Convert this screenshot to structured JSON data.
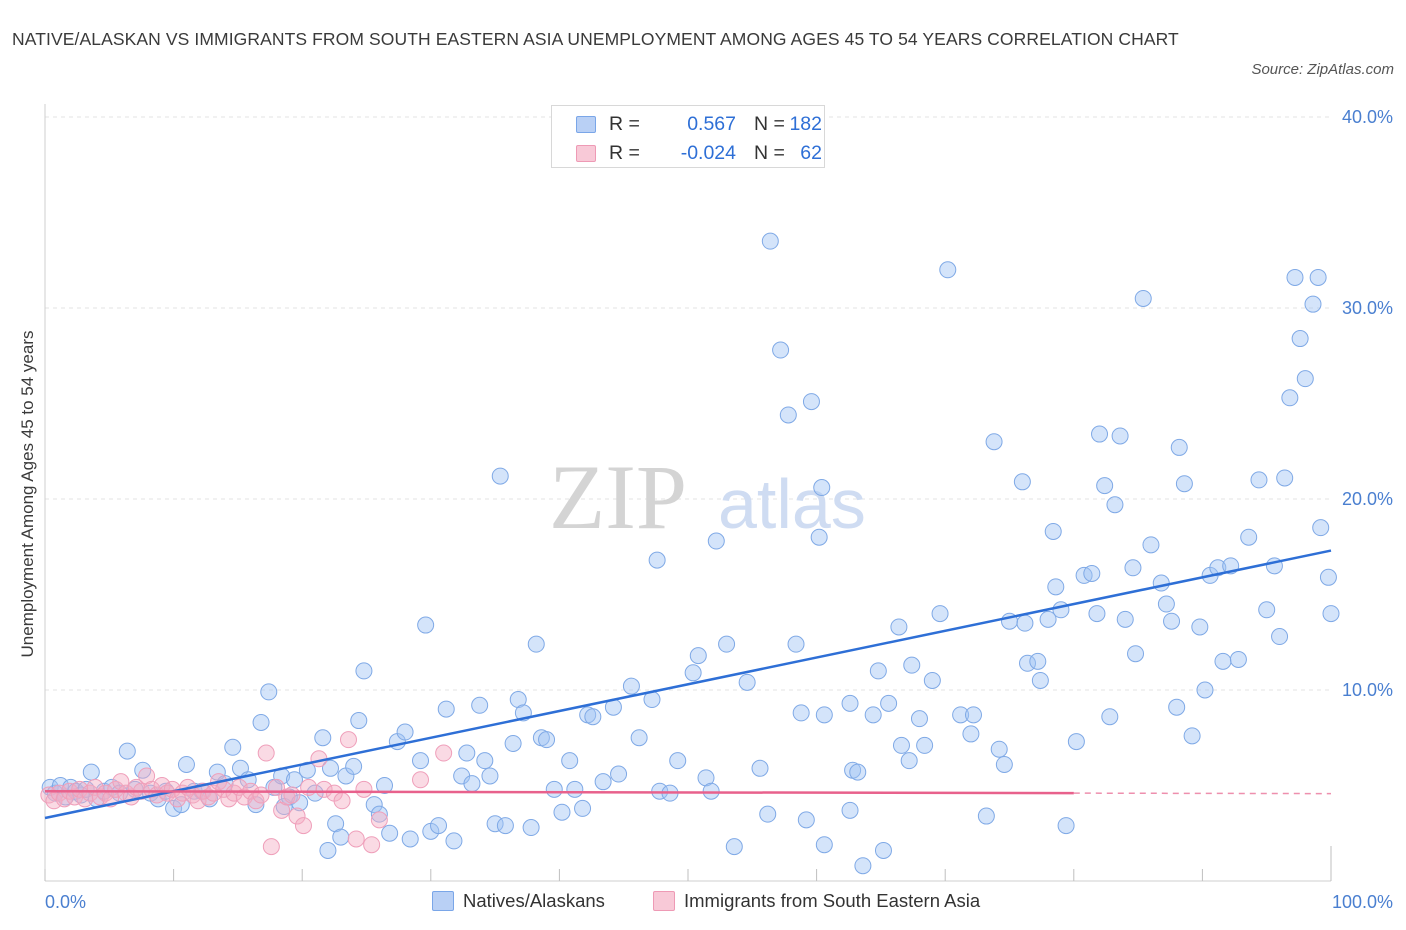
{
  "title": "NATIVE/ALASKAN VS IMMIGRANTS FROM SOUTH EASTERN ASIA UNEMPLOYMENT AMONG AGES 45 TO 54 YEARS CORRELATION CHART",
  "source": "Source: ZipAtlas.com",
  "watermark": {
    "zip": "ZIP",
    "atlas": "atlas"
  },
  "legend": {
    "rows": [
      {
        "r_label": "R =",
        "r_value": "0.567",
        "n_label": "N =",
        "n_value": "182"
      },
      {
        "r_label": "R =",
        "r_value": "-0.024",
        "n_label": "N =",
        "n_value": "62"
      }
    ]
  },
  "chart_data": {
    "type": "scatter",
    "title": "NATIVE/ALASKAN VS IMMIGRANTS FROM SOUTH EASTERN ASIA UNEMPLOYMENT AMONG AGES 45 TO 54 YEARS CORRELATION CHART",
    "xlabel": "",
    "ylabel": "Unemployment Among Ages 45 to 54 years",
    "xlim": [
      0,
      100
    ],
    "ylim": [
      0,
      40
    ],
    "x_tick_labels": [
      "0.0%",
      "100.0%"
    ],
    "y_ticks": [
      10,
      20,
      30,
      40
    ],
    "y_tick_labels": [
      "10.0%",
      "20.0%",
      "30.0%",
      "40.0%"
    ],
    "grid": true,
    "series": [
      {
        "name": "Natives/Alaskans",
        "color": "#8ab4ee",
        "line_color": "#2e6fd6",
        "R": 0.567,
        "N": 182,
        "trend": {
          "x0": 0,
          "y0": 3.3,
          "x1": 100,
          "y1": 17.3
        },
        "points": [
          [
            0.4,
            4.9
          ],
          [
            0.8,
            4.6
          ],
          [
            1.2,
            5.0
          ],
          [
            1.6,
            4.4
          ],
          [
            2.0,
            4.9
          ],
          [
            2.4,
            4.7
          ],
          [
            2.8,
            4.5
          ],
          [
            3.2,
            4.8
          ],
          [
            3.6,
            5.7
          ],
          [
            4.0,
            4.3
          ],
          [
            4.6,
            4.7
          ],
          [
            5.2,
            4.9
          ],
          [
            5.8,
            4.6
          ],
          [
            6.4,
            6.8
          ],
          [
            7.0,
            4.8
          ],
          [
            7.6,
            5.8
          ],
          [
            8.2,
            4.6
          ],
          [
            8.8,
            4.3
          ],
          [
            9.4,
            4.7
          ],
          [
            10.0,
            3.8
          ],
          [
            10.6,
            4.0
          ],
          [
            11.0,
            6.1
          ],
          [
            11.6,
            4.7
          ],
          [
            12.2,
            4.7
          ],
          [
            12.8,
            4.3
          ],
          [
            13.4,
            5.7
          ],
          [
            14.0,
            5.1
          ],
          [
            14.6,
            7.0
          ],
          [
            15.2,
            5.9
          ],
          [
            15.8,
            5.3
          ],
          [
            16.4,
            4.0
          ],
          [
            16.8,
            8.3
          ],
          [
            17.4,
            9.9
          ],
          [
            17.8,
            4.9
          ],
          [
            18.4,
            5.5
          ],
          [
            18.6,
            3.9
          ],
          [
            19.0,
            4.4
          ],
          [
            19.4,
            5.3
          ],
          [
            19.8,
            4.1
          ],
          [
            20.4,
            5.8
          ],
          [
            21.0,
            4.6
          ],
          [
            21.6,
            7.5
          ],
          [
            22.0,
            1.6
          ],
          [
            22.2,
            5.9
          ],
          [
            22.6,
            3.0
          ],
          [
            23.0,
            2.3
          ],
          [
            23.4,
            5.5
          ],
          [
            24.0,
            6.0
          ],
          [
            24.4,
            8.4
          ],
          [
            24.8,
            11.0
          ],
          [
            25.6,
            4.0
          ],
          [
            26.0,
            3.5
          ],
          [
            26.4,
            5.0
          ],
          [
            26.8,
            2.5
          ],
          [
            27.4,
            7.3
          ],
          [
            28.0,
            7.8
          ],
          [
            28.4,
            2.2
          ],
          [
            29.2,
            6.3
          ],
          [
            29.6,
            13.4
          ],
          [
            30.0,
            2.6
          ],
          [
            30.6,
            2.9
          ],
          [
            31.2,
            9.0
          ],
          [
            31.8,
            2.1
          ],
          [
            32.4,
            5.5
          ],
          [
            32.8,
            6.7
          ],
          [
            33.2,
            5.1
          ],
          [
            33.8,
            9.2
          ],
          [
            34.2,
            6.3
          ],
          [
            34.6,
            5.5
          ],
          [
            35.0,
            3.0
          ],
          [
            35.4,
            21.2
          ],
          [
            35.8,
            2.9
          ],
          [
            36.4,
            7.2
          ],
          [
            36.8,
            9.5
          ],
          [
            37.2,
            8.8
          ],
          [
            37.8,
            2.8
          ],
          [
            38.2,
            12.4
          ],
          [
            38.6,
            7.5
          ],
          [
            39.0,
            7.4
          ],
          [
            39.6,
            4.8
          ],
          [
            40.2,
            3.6
          ],
          [
            40.8,
            6.3
          ],
          [
            41.2,
            4.8
          ],
          [
            41.8,
            3.8
          ],
          [
            42.2,
            8.7
          ],
          [
            42.6,
            8.6
          ],
          [
            43.4,
            5.2
          ],
          [
            44.2,
            9.1
          ],
          [
            44.6,
            5.6
          ],
          [
            45.6,
            10.2
          ],
          [
            46.2,
            7.5
          ],
          [
            47.2,
            9.5
          ],
          [
            47.6,
            16.8
          ],
          [
            47.8,
            4.7
          ],
          [
            48.6,
            4.6
          ],
          [
            49.2,
            6.3
          ],
          [
            50.4,
            10.9
          ],
          [
            50.8,
            11.8
          ],
          [
            51.4,
            5.4
          ],
          [
            51.8,
            4.7
          ],
          [
            52.2,
            17.8
          ],
          [
            53.0,
            12.4
          ],
          [
            53.6,
            1.8
          ],
          [
            54.6,
            10.4
          ],
          [
            55.6,
            5.9
          ],
          [
            56.2,
            3.5
          ],
          [
            56.4,
            33.5
          ],
          [
            57.2,
            27.8
          ],
          [
            57.8,
            24.4
          ],
          [
            58.4,
            12.4
          ],
          [
            58.8,
            8.8
          ],
          [
            59.2,
            3.2
          ],
          [
            59.6,
            25.1
          ],
          [
            60.2,
            18.0
          ],
          [
            60.4,
            20.6
          ],
          [
            60.6,
            8.7
          ],
          [
            60.6,
            1.9
          ],
          [
            62.6,
            9.3
          ],
          [
            62.6,
            3.7
          ],
          [
            62.8,
            5.8
          ],
          [
            63.2,
            5.7
          ],
          [
            63.6,
            0.8
          ],
          [
            64.4,
            8.7
          ],
          [
            64.8,
            11.0
          ],
          [
            65.2,
            1.6
          ],
          [
            65.6,
            9.3
          ],
          [
            66.4,
            13.3
          ],
          [
            66.6,
            7.1
          ],
          [
            67.2,
            6.3
          ],
          [
            67.4,
            11.3
          ],
          [
            68.0,
            8.5
          ],
          [
            68.4,
            7.1
          ],
          [
            69.0,
            10.5
          ],
          [
            69.6,
            14.0
          ],
          [
            70.2,
            32.0
          ],
          [
            71.2,
            8.7
          ],
          [
            72.0,
            7.7
          ],
          [
            72.2,
            8.7
          ],
          [
            73.2,
            3.4
          ],
          [
            73.8,
            23.0
          ],
          [
            74.2,
            6.9
          ],
          [
            74.6,
            6.1
          ],
          [
            75.0,
            13.6
          ],
          [
            76.0,
            20.9
          ],
          [
            76.2,
            13.5
          ],
          [
            76.4,
            11.4
          ],
          [
            77.2,
            11.5
          ],
          [
            77.4,
            10.5
          ],
          [
            78.0,
            13.7
          ],
          [
            78.4,
            18.3
          ],
          [
            78.6,
            15.4
          ],
          [
            79.0,
            14.2
          ],
          [
            79.4,
            2.9
          ],
          [
            80.2,
            7.3
          ],
          [
            80.8,
            16.0
          ],
          [
            81.4,
            16.1
          ],
          [
            81.8,
            14.0
          ],
          [
            82.0,
            23.4
          ],
          [
            82.4,
            20.7
          ],
          [
            82.8,
            8.6
          ],
          [
            83.2,
            19.7
          ],
          [
            83.6,
            23.3
          ],
          [
            84.0,
            13.7
          ],
          [
            84.6,
            16.4
          ],
          [
            84.8,
            11.9
          ],
          [
            85.4,
            30.5
          ],
          [
            86.0,
            17.6
          ],
          [
            86.8,
            15.6
          ],
          [
            87.2,
            14.5
          ],
          [
            87.6,
            13.6
          ],
          [
            88.0,
            9.1
          ],
          [
            88.2,
            22.7
          ],
          [
            88.6,
            20.8
          ],
          [
            89.2,
            7.6
          ],
          [
            89.8,
            13.3
          ],
          [
            90.2,
            10.0
          ],
          [
            90.6,
            16.0
          ],
          [
            91.2,
            16.4
          ],
          [
            91.6,
            11.5
          ],
          [
            92.2,
            16.5
          ],
          [
            92.8,
            11.6
          ],
          [
            93.6,
            18.0
          ],
          [
            94.4,
            21.0
          ],
          [
            95.0,
            14.2
          ],
          [
            95.6,
            16.5
          ],
          [
            96.0,
            12.8
          ],
          [
            96.4,
            21.1
          ],
          [
            96.8,
            25.3
          ],
          [
            97.2,
            31.6
          ],
          [
            97.6,
            28.4
          ],
          [
            98.0,
            26.3
          ],
          [
            98.6,
            30.2
          ],
          [
            99.0,
            31.6
          ],
          [
            99.2,
            18.5
          ],
          [
            99.8,
            15.9
          ],
          [
            100.0,
            14.0
          ]
        ]
      },
      {
        "name": "Immigrants from South Eastern Asia",
        "color": "#f2a6bd",
        "line_color": "#e8618c",
        "R": -0.024,
        "N": 62,
        "trend": {
          "x0": 0,
          "y0": 4.7,
          "x1": 80,
          "y1": 4.6,
          "dash_to_x": 100
        },
        "points": [
          [
            0.3,
            4.5
          ],
          [
            0.7,
            4.2
          ],
          [
            1.1,
            4.6
          ],
          [
            1.5,
            4.3
          ],
          [
            1.9,
            4.7
          ],
          [
            2.3,
            4.4
          ],
          [
            2.7,
            4.8
          ],
          [
            3.1,
            4.3
          ],
          [
            3.5,
            4.6
          ],
          [
            3.9,
            4.9
          ],
          [
            4.3,
            4.4
          ],
          [
            4.7,
            4.6
          ],
          [
            5.1,
            4.3
          ],
          [
            5.5,
            4.8
          ],
          [
            5.9,
            5.2
          ],
          [
            6.3,
            4.6
          ],
          [
            6.7,
            4.4
          ],
          [
            7.1,
            4.9
          ],
          [
            7.5,
            4.7
          ],
          [
            7.9,
            5.5
          ],
          [
            8.3,
            4.8
          ],
          [
            8.7,
            4.5
          ],
          [
            9.1,
            5.0
          ],
          [
            9.5,
            4.6
          ],
          [
            9.9,
            4.8
          ],
          [
            10.3,
            4.3
          ],
          [
            10.7,
            4.6
          ],
          [
            11.1,
            4.9
          ],
          [
            11.5,
            4.5
          ],
          [
            11.9,
            4.2
          ],
          [
            12.3,
            4.7
          ],
          [
            12.7,
            4.4
          ],
          [
            13.1,
            4.6
          ],
          [
            13.5,
            5.2
          ],
          [
            13.9,
            4.8
          ],
          [
            14.3,
            4.3
          ],
          [
            14.7,
            4.6
          ],
          [
            15.1,
            4.9
          ],
          [
            15.5,
            4.4
          ],
          [
            16.0,
            4.7
          ],
          [
            16.4,
            4.2
          ],
          [
            16.8,
            4.5
          ],
          [
            17.2,
            6.7
          ],
          [
            17.6,
            1.8
          ],
          [
            18.0,
            4.9
          ],
          [
            18.4,
            3.7
          ],
          [
            18.8,
            4.4
          ],
          [
            19.2,
            4.5
          ],
          [
            19.6,
            3.4
          ],
          [
            20.1,
            2.9
          ],
          [
            20.5,
            4.9
          ],
          [
            21.3,
            6.4
          ],
          [
            21.7,
            4.8
          ],
          [
            22.5,
            4.6
          ],
          [
            23.1,
            4.2
          ],
          [
            23.6,
            7.4
          ],
          [
            24.2,
            2.2
          ],
          [
            24.8,
            4.8
          ],
          [
            25.4,
            1.9
          ],
          [
            26.0,
            3.2
          ],
          [
            29.2,
            5.3
          ],
          [
            31.0,
            6.7
          ]
        ]
      }
    ]
  },
  "bottom_legend": [
    {
      "label": "Natives/Alaskans"
    },
    {
      "label": "Immigrants from South Eastern Asia"
    }
  ]
}
